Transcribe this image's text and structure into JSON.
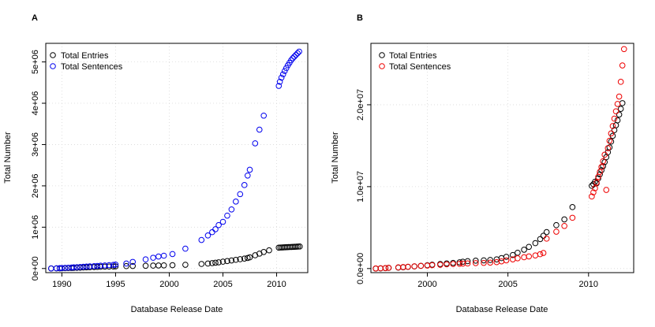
{
  "chart_data": [
    {
      "type": "scatter",
      "panel_label": "A",
      "xlabel": "Database Release Date",
      "ylabel": "Total Number",
      "xlim": [
        1988.5,
        2012.9
      ],
      "ylim": [
        -100000,
        5450000
      ],
      "x_ticks": [
        1990,
        1995,
        2000,
        2005,
        2010
      ],
      "x_tick_labels": [
        "1990",
        "1995",
        "2000",
        "2005",
        "2010"
      ],
      "y_ticks": [
        0,
        1000000,
        2000000,
        3000000,
        4000000,
        5000000
      ],
      "y_tick_labels": [
        "0e+00",
        "1e+06",
        "2e+06",
        "3e+06",
        "4e+06",
        "5e+06"
      ],
      "grid": true,
      "legend_position": "top-left",
      "series": [
        {
          "name": "Total Entries",
          "color": "#000000",
          "points": [
            [
              1989.0,
              1000
            ],
            [
              1989.5,
              3000
            ],
            [
              1989.8,
              4000
            ],
            [
              1990.0,
              6000
            ],
            [
              1990.3,
              8000
            ],
            [
              1990.6,
              10000
            ],
            [
              1990.9,
              12000
            ],
            [
              1991.1,
              15000
            ],
            [
              1991.4,
              18000
            ],
            [
              1991.7,
              21000
            ],
            [
              1992.0,
              24000
            ],
            [
              1992.3,
              27000
            ],
            [
              1992.6,
              31000
            ],
            [
              1993.0,
              35000
            ],
            [
              1993.3,
              38000
            ],
            [
              1993.6,
              41000
            ],
            [
              1994.0,
              44000
            ],
            [
              1994.4,
              47000
            ],
            [
              1994.8,
              50000
            ],
            [
              1995.0,
              52000
            ],
            [
              1996.0,
              58000
            ],
            [
              1996.6,
              61000
            ],
            [
              1997.8,
              66000
            ],
            [
              1998.5,
              70000
            ],
            [
              1999.0,
              73000
            ],
            [
              1999.5,
              76000
            ],
            [
              2000.3,
              80000
            ],
            [
              2001.5,
              90000
            ],
            [
              2003.0,
              110000
            ],
            [
              2003.6,
              120000
            ],
            [
              2004.0,
              130000
            ],
            [
              2004.3,
              140000
            ],
            [
              2004.6,
              150000
            ],
            [
              2005.0,
              165000
            ],
            [
              2005.4,
              180000
            ],
            [
              2005.8,
              195000
            ],
            [
              2006.2,
              210000
            ],
            [
              2006.6,
              225000
            ],
            [
              2007.0,
              240000
            ],
            [
              2007.3,
              255000
            ],
            [
              2007.5,
              270000
            ],
            [
              2008.0,
              320000
            ],
            [
              2008.4,
              360000
            ],
            [
              2008.8,
              400000
            ],
            [
              2009.3,
              440000
            ],
            [
              2010.2,
              505000
            ],
            [
              2010.35,
              508000
            ],
            [
              2010.5,
              510000
            ],
            [
              2010.65,
              512000
            ],
            [
              2010.8,
              514000
            ],
            [
              2010.95,
              516000
            ],
            [
              2011.1,
              518000
            ],
            [
              2011.25,
              520000
            ],
            [
              2011.4,
              522000
            ],
            [
              2011.55,
              524000
            ],
            [
              2011.7,
              526000
            ],
            [
              2011.85,
              528000
            ],
            [
              2012.0,
              530000
            ],
            [
              2012.15,
              532000
            ]
          ]
        },
        {
          "name": "Total Sentences",
          "color": "#0000ee",
          "points": [
            [
              1989.0,
              2000
            ],
            [
              1989.5,
              5000
            ],
            [
              1989.8,
              8000
            ],
            [
              1990.0,
              12000
            ],
            [
              1990.3,
              15000
            ],
            [
              1990.6,
              19000
            ],
            [
              1990.9,
              23000
            ],
            [
              1991.1,
              27000
            ],
            [
              1991.4,
              31000
            ],
            [
              1991.7,
              36000
            ],
            [
              1992.0,
              41000
            ],
            [
              1992.3,
              46000
            ],
            [
              1992.6,
              51000
            ],
            [
              1993.0,
              57000
            ],
            [
              1993.3,
              62000
            ],
            [
              1993.6,
              68000
            ],
            [
              1994.0,
              74000
            ],
            [
              1994.4,
              81000
            ],
            [
              1994.8,
              88000
            ],
            [
              1995.0,
              95000
            ],
            [
              1996.0,
              120000
            ],
            [
              1996.6,
              160000
            ],
            [
              1997.8,
              220000
            ],
            [
              1998.5,
              260000
            ],
            [
              1999.0,
              290000
            ],
            [
              1999.5,
              310000
            ],
            [
              2000.3,
              350000
            ],
            [
              2001.5,
              480000
            ],
            [
              2003.0,
              690000
            ],
            [
              2003.6,
              800000
            ],
            [
              2004.0,
              880000
            ],
            [
              2004.3,
              950000
            ],
            [
              2004.6,
              1050000
            ],
            [
              2005.0,
              1130000
            ],
            [
              2005.4,
              1280000
            ],
            [
              2005.8,
              1430000
            ],
            [
              2006.2,
              1620000
            ],
            [
              2006.6,
              1800000
            ],
            [
              2007.0,
              2020000
            ],
            [
              2007.3,
              2250000
            ],
            [
              2007.5,
              2390000
            ],
            [
              2008.0,
              3030000
            ],
            [
              2008.4,
              3360000
            ],
            [
              2008.8,
              3700000
            ],
            [
              2010.2,
              4420000
            ],
            [
              2010.3,
              4520000
            ],
            [
              2010.45,
              4620000
            ],
            [
              2010.6,
              4700000
            ],
            [
              2010.75,
              4780000
            ],
            [
              2010.9,
              4850000
            ],
            [
              2011.05,
              4920000
            ],
            [
              2011.2,
              4980000
            ],
            [
              2011.35,
              5040000
            ],
            [
              2011.5,
              5090000
            ],
            [
              2011.65,
              5130000
            ],
            [
              2011.8,
              5170000
            ],
            [
              2011.95,
              5210000
            ],
            [
              2012.1,
              5250000
            ]
          ]
        }
      ]
    },
    {
      "type": "scatter",
      "panel_label": "B",
      "xlabel": "Database Release Date",
      "ylabel": "Total Number",
      "xlim": [
        1996.5,
        2012.8
      ],
      "ylim": [
        -500000,
        27500000
      ],
      "x_ticks": [
        2000,
        2005,
        2010
      ],
      "x_tick_labels": [
        "2000",
        "2005",
        "2010"
      ],
      "y_ticks": [
        0,
        10000000,
        20000000
      ],
      "y_tick_labels": [
        "0.0e+00",
        "1.0e+07",
        "2.0e+07"
      ],
      "grid": true,
      "legend_position": "top-left",
      "series": [
        {
          "name": "Total Entries",
          "color": "#000000",
          "points": [
            [
              1996.8,
              0
            ],
            [
              1997.1,
              20000
            ],
            [
              1997.4,
              50000
            ],
            [
              1997.6,
              80000
            ],
            [
              1998.2,
              120000
            ],
            [
              1998.5,
              160000
            ],
            [
              1998.8,
              200000
            ],
            [
              1999.2,
              260000
            ],
            [
              1999.6,
              330000
            ],
            [
              2000.0,
              400000
            ],
            [
              2000.3,
              470000
            ],
            [
              2000.8,
              550000
            ],
            [
              2001.2,
              620000
            ],
            [
              2001.6,
              690000
            ],
            [
              2002.0,
              760000
            ],
            [
              2002.2,
              830000
            ],
            [
              2002.5,
              900000
            ],
            [
              2003.0,
              960000
            ],
            [
              2003.5,
              1000000
            ],
            [
              2003.9,
              1050000
            ],
            [
              2004.3,
              1120000
            ],
            [
              2004.6,
              1270000
            ],
            [
              2004.9,
              1430000
            ],
            [
              2005.3,
              1650000
            ],
            [
              2005.6,
              1930000
            ],
            [
              2006.0,
              2300000
            ],
            [
              2006.3,
              2650000
            ],
            [
              2006.7,
              3100000
            ],
            [
              2007.0,
              3600000
            ],
            [
              2007.2,
              4000000
            ],
            [
              2007.4,
              4450000
            ],
            [
              2008.0,
              5300000
            ],
            [
              2008.5,
              6000000
            ],
            [
              2009.0,
              7500000
            ],
            [
              2010.2,
              10100000
            ],
            [
              2010.3,
              10300000
            ],
            [
              2010.4,
              10600000
            ],
            [
              2010.5,
              10400000
            ],
            [
              2010.6,
              11000000
            ],
            [
              2010.7,
              11500000
            ],
            [
              2010.8,
              12000000
            ],
            [
              2010.9,
              12500000
            ],
            [
              2011.0,
              13000000
            ],
            [
              2011.1,
              13600000
            ],
            [
              2011.2,
              14200000
            ],
            [
              2011.3,
              14800000
            ],
            [
              2011.4,
              15500000
            ],
            [
              2011.5,
              16200000
            ],
            [
              2011.6,
              16900000
            ],
            [
              2011.7,
              17500000
            ],
            [
              2011.8,
              18100000
            ],
            [
              2011.9,
              18800000
            ],
            [
              2012.0,
              19500000
            ],
            [
              2012.1,
              20200000
            ]
          ]
        },
        {
          "name": "Total Sentences",
          "color": "#ee0000",
          "points": [
            [
              1996.8,
              10000
            ],
            [
              1997.1,
              30000
            ],
            [
              1997.4,
              60000
            ],
            [
              1997.6,
              90000
            ],
            [
              1998.2,
              140000
            ],
            [
              1998.5,
              180000
            ],
            [
              1998.8,
              220000
            ],
            [
              1999.2,
              270000
            ],
            [
              1999.6,
              320000
            ],
            [
              2000.0,
              360000
            ],
            [
              2000.3,
              410000
            ],
            [
              2000.8,
              460000
            ],
            [
              2001.2,
              510000
            ],
            [
              2001.6,
              550000
            ],
            [
              2002.0,
              580000
            ],
            [
              2002.2,
              600000
            ],
            [
              2002.5,
              620000
            ],
            [
              2003.0,
              660000
            ],
            [
              2003.5,
              690000
            ],
            [
              2003.9,
              720000
            ],
            [
              2004.3,
              780000
            ],
            [
              2004.6,
              880000
            ],
            [
              2004.9,
              1000000
            ],
            [
              2005.3,
              1120000
            ],
            [
              2005.6,
              1250000
            ],
            [
              2006.0,
              1380000
            ],
            [
              2006.3,
              1480000
            ],
            [
              2006.7,
              1600000
            ],
            [
              2007.0,
              1750000
            ],
            [
              2007.2,
              1900000
            ],
            [
              2007.4,
              3650000
            ],
            [
              2008.0,
              4500000
            ],
            [
              2008.5,
              5200000
            ],
            [
              2009.0,
              6200000
            ],
            [
              2010.2,
              8800000
            ],
            [
              2010.3,
              9300000
            ],
            [
              2010.4,
              9800000
            ],
            [
              2010.5,
              10500000
            ],
            [
              2010.6,
              11200000
            ],
            [
              2010.7,
              11800000
            ],
            [
              2010.8,
              12400000
            ],
            [
              2010.9,
              13100000
            ],
            [
              2011.0,
              13900000
            ],
            [
              2011.1,
              9600000
            ],
            [
              2011.2,
              14700000
            ],
            [
              2011.3,
              15600000
            ],
            [
              2011.4,
              16500000
            ],
            [
              2011.5,
              17400000
            ],
            [
              2011.6,
              18300000
            ],
            [
              2011.7,
              19200000
            ],
            [
              2011.8,
              20100000
            ],
            [
              2011.9,
              21000000
            ],
            [
              2012.0,
              22800000
            ],
            [
              2012.1,
              24800000
            ],
            [
              2012.2,
              26800000
            ]
          ]
        }
      ]
    }
  ]
}
